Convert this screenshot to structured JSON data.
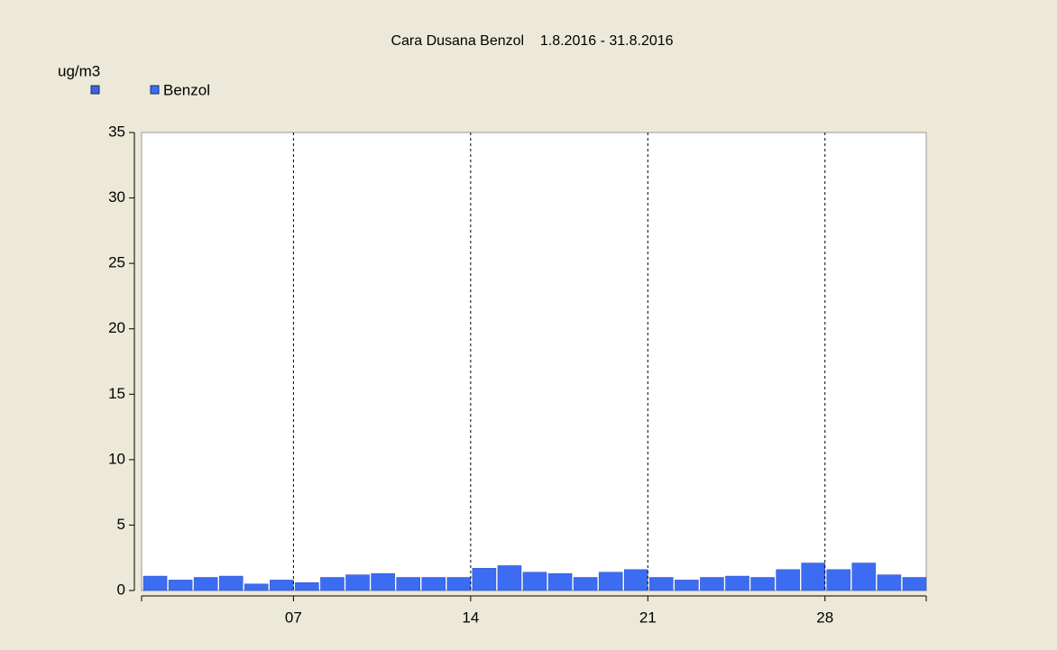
{
  "chart_data": {
    "type": "bar",
    "title": "Cara Dusana Benzol    1.8.2016 - 31.8.2016",
    "y_axis_label": "ug/m3",
    "categories": [
      null,
      null,
      null,
      null,
      null,
      null,
      "07",
      null,
      null,
      null,
      null,
      null,
      null,
      "14",
      null,
      null,
      null,
      null,
      null,
      null,
      "21",
      null,
      null,
      null,
      null,
      null,
      null,
      "28",
      null,
      null,
      null
    ],
    "series": [
      {
        "name": "Benzol",
        "color": "#3b6cf2",
        "values": [
          1.1,
          0.8,
          1.0,
          1.1,
          0.5,
          0.8,
          0.6,
          1.0,
          1.2,
          1.3,
          1.0,
          1.0,
          1.0,
          1.7,
          1.9,
          1.4,
          1.3,
          1.0,
          1.4,
          1.6,
          1.0,
          0.8,
          1.0,
          1.1,
          1.0,
          1.6,
          2.1,
          1.6,
          2.1,
          1.2,
          1.0
        ]
      }
    ],
    "ylim": [
      0,
      35
    ],
    "yticks": [
      0,
      5,
      10,
      15,
      20,
      25,
      30,
      35
    ],
    "grid": "x-dashed",
    "legend": "top-left"
  }
}
